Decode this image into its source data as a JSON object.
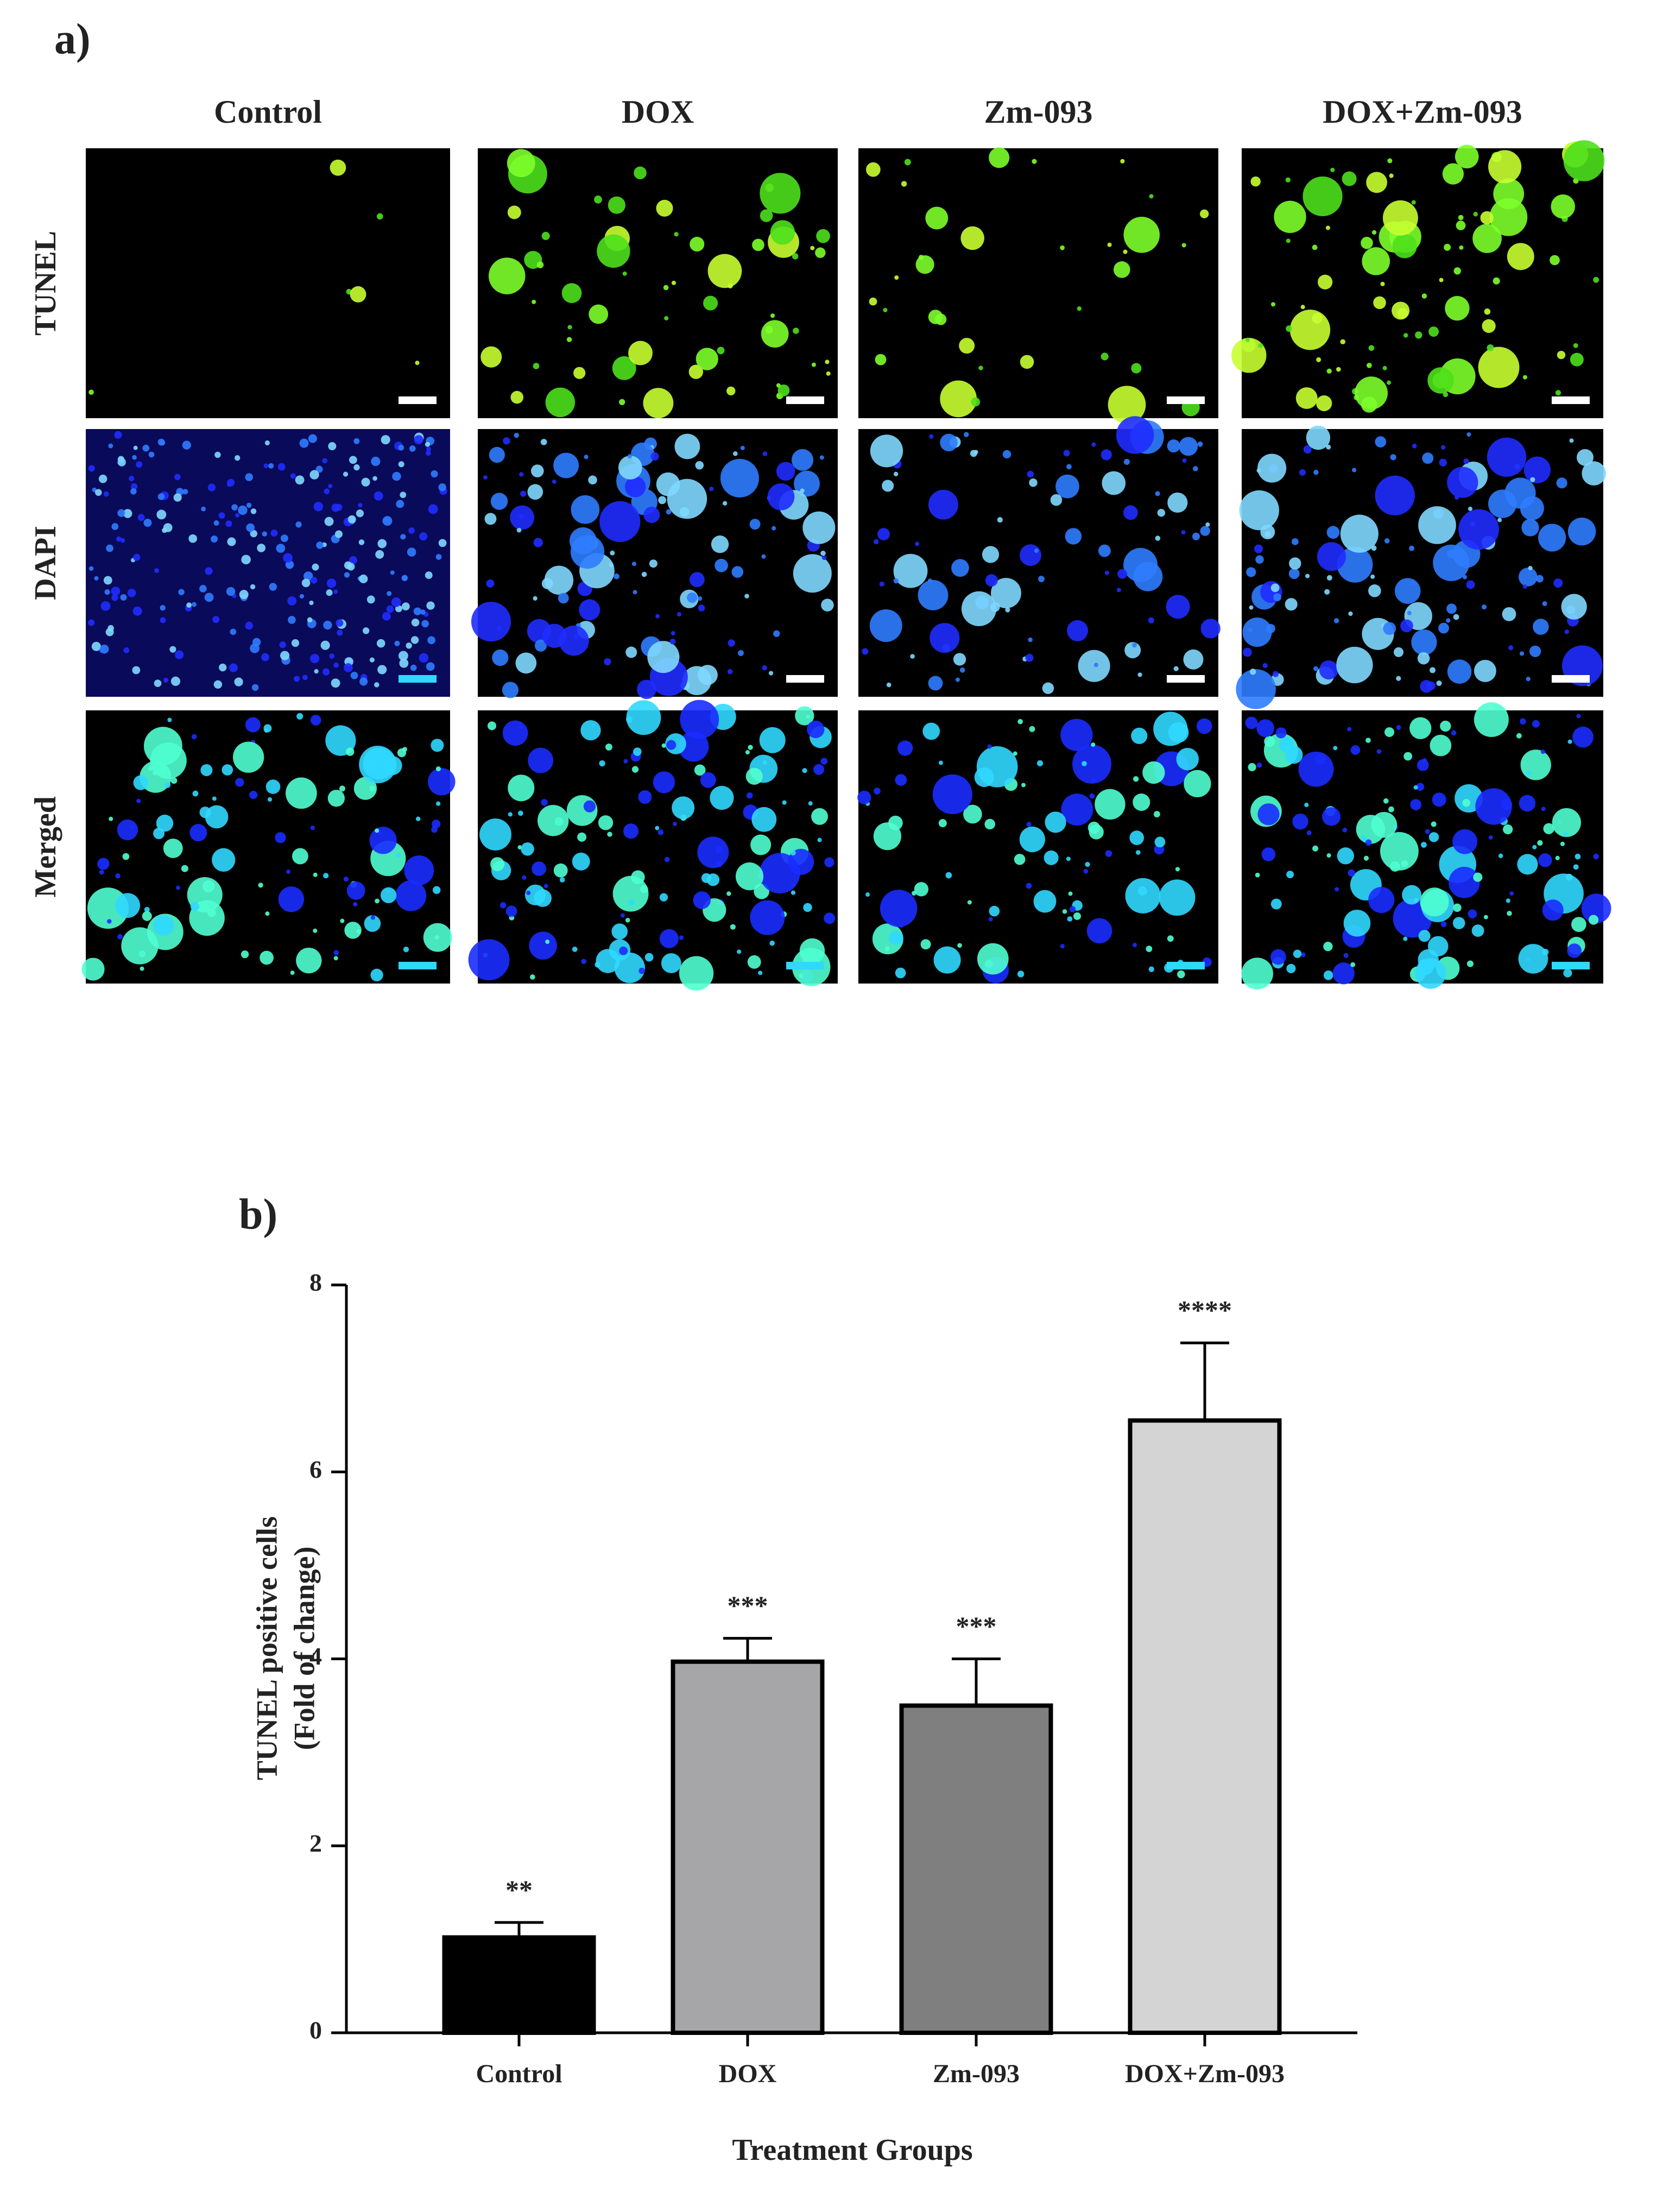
{
  "panel_a": {
    "label": "a)",
    "columns": [
      "Control",
      "DOX",
      "Zm-093",
      "DOX+Zm-093"
    ],
    "rows": [
      "TUNEL",
      "DAPI",
      "Merged"
    ]
  },
  "chart_data": {
    "type": "bar",
    "panel_label": "b)",
    "categories": [
      "Control",
      "DOX",
      "Zm-093",
      "DOX+Zm-093"
    ],
    "values": [
      1.02,
      3.97,
      3.5,
      6.55
    ],
    "errors": [
      0.16,
      0.25,
      0.5,
      0.83
    ],
    "annotations": [
      "**",
      "***",
      "***",
      "****"
    ],
    "colors": [
      "#000000",
      "#a6a6a8",
      "#7f7f7f",
      "#d4d4d4"
    ],
    "ylim": [
      0,
      8
    ],
    "yticks": [
      0,
      2,
      4,
      6,
      8
    ],
    "ylabel": [
      "TUNEL positive cells",
      "(Fold of change)"
    ],
    "xlabel": "Treatment Groups"
  }
}
